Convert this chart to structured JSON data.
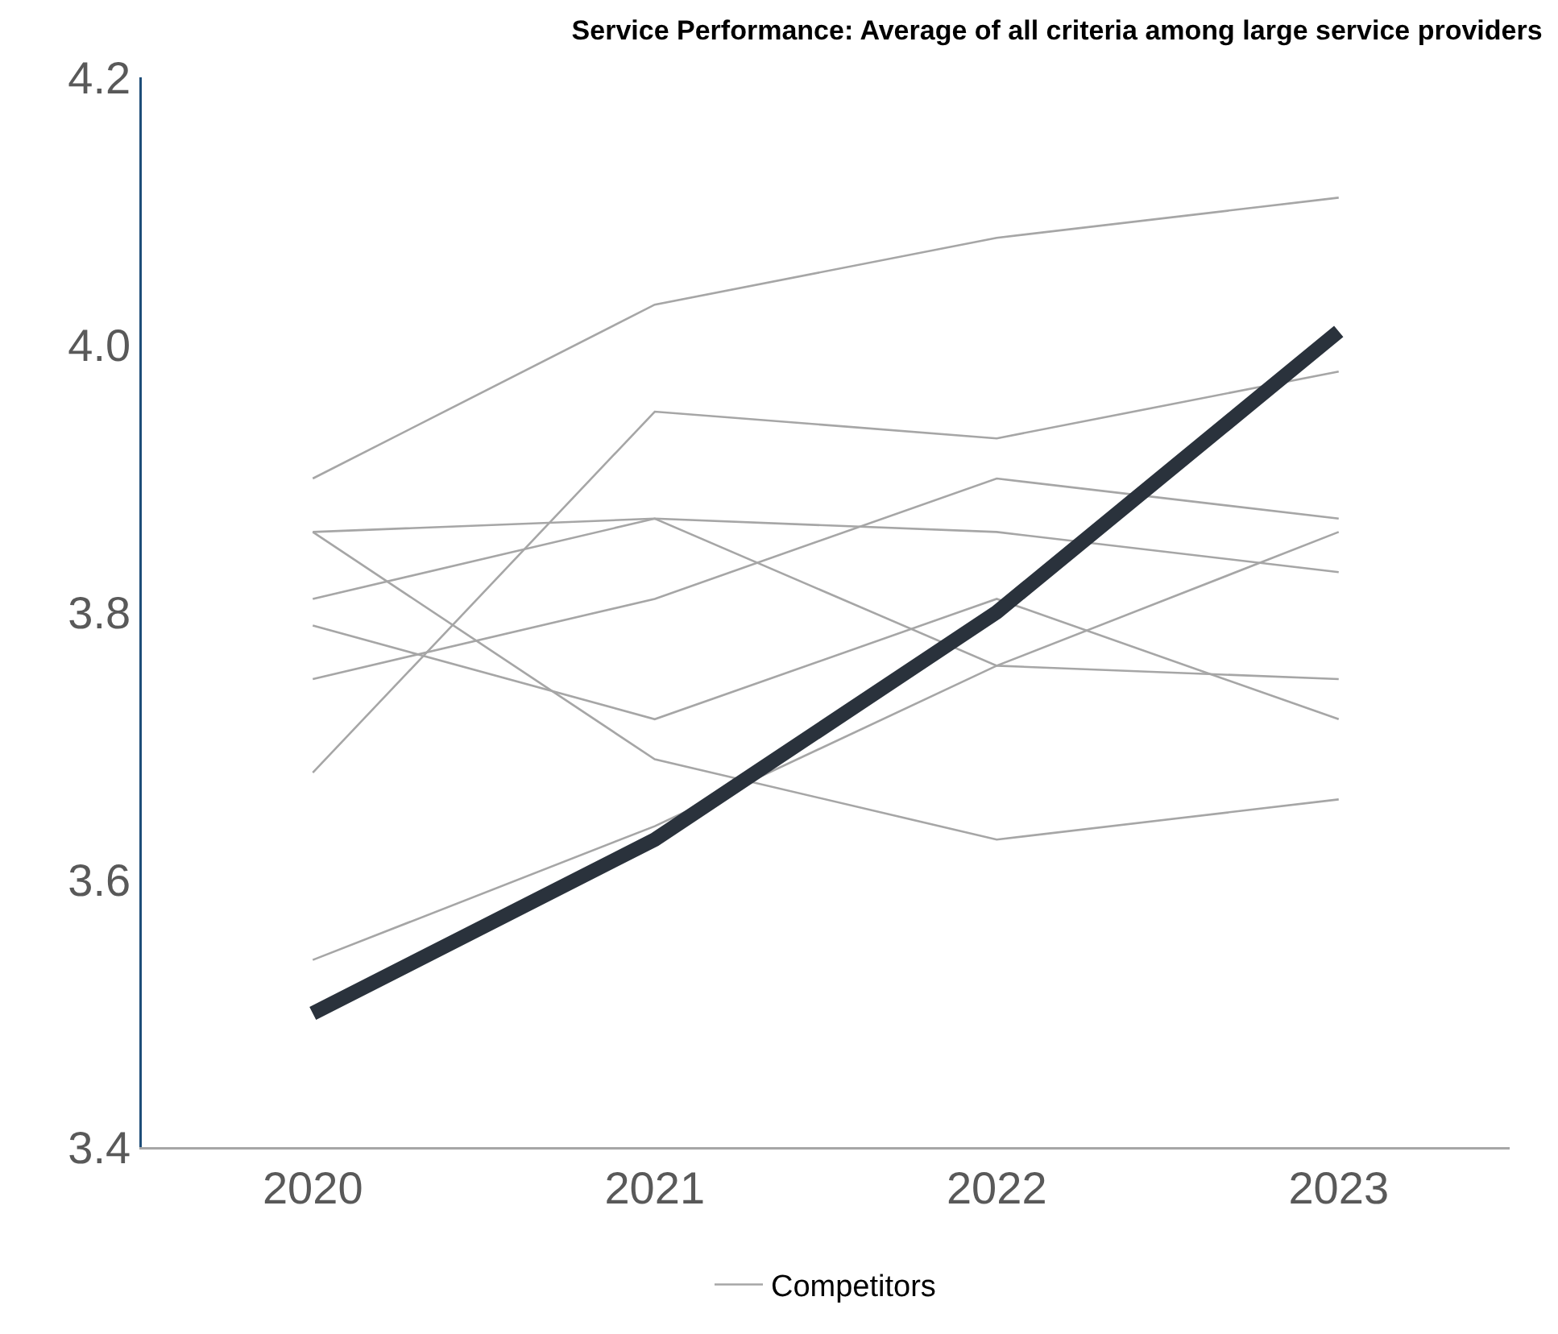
{
  "chart_data": {
    "type": "line",
    "title": "Service Performance: Average of all criteria among large service providers",
    "categories": [
      "2020",
      "2021",
      "2022",
      "2023"
    ],
    "series": [
      {
        "name": "Competitors",
        "color": "#a6a6a6",
        "values": [
          3.9,
          4.03,
          4.08,
          4.11
        ]
      },
      {
        "color": "#a6a6a6",
        "values": [
          3.68,
          3.95,
          3.93,
          3.98
        ]
      },
      {
        "color": "#a6a6a6",
        "values": [
          3.86,
          3.87,
          3.86,
          3.83
        ]
      },
      {
        "color": "#a6a6a6",
        "values": [
          3.75,
          3.81,
          3.9,
          3.87
        ]
      },
      {
        "color": "#a6a6a6",
        "values": [
          3.81,
          3.87,
          3.76,
          3.75
        ]
      },
      {
        "color": "#a6a6a6",
        "values": [
          3.79,
          3.72,
          3.81,
          3.72
        ]
      },
      {
        "color": "#a6a6a6",
        "values": [
          3.86,
          3.69,
          3.63,
          3.66
        ]
      },
      {
        "color": "#a6a6a6",
        "values": [
          3.54,
          3.64,
          3.76,
          3.86
        ]
      },
      {
        "color": "#2a323c",
        "values": [
          3.5,
          3.63,
          3.8,
          4.01
        ]
      }
    ],
    "ylim": [
      3.4,
      4.2
    ],
    "yticks": [
      {
        "value": 3.4,
        "label": "3.4"
      },
      {
        "value": 3.6,
        "label": "3.6"
      },
      {
        "value": 3.8,
        "label": "3.8"
      },
      {
        "value": 4.0,
        "label": "4.0"
      },
      {
        "value": 4.2,
        "label": "4.2"
      }
    ],
    "grid": false,
    "legend": "bottom",
    "marker": "none",
    "line_style": "solid"
  }
}
